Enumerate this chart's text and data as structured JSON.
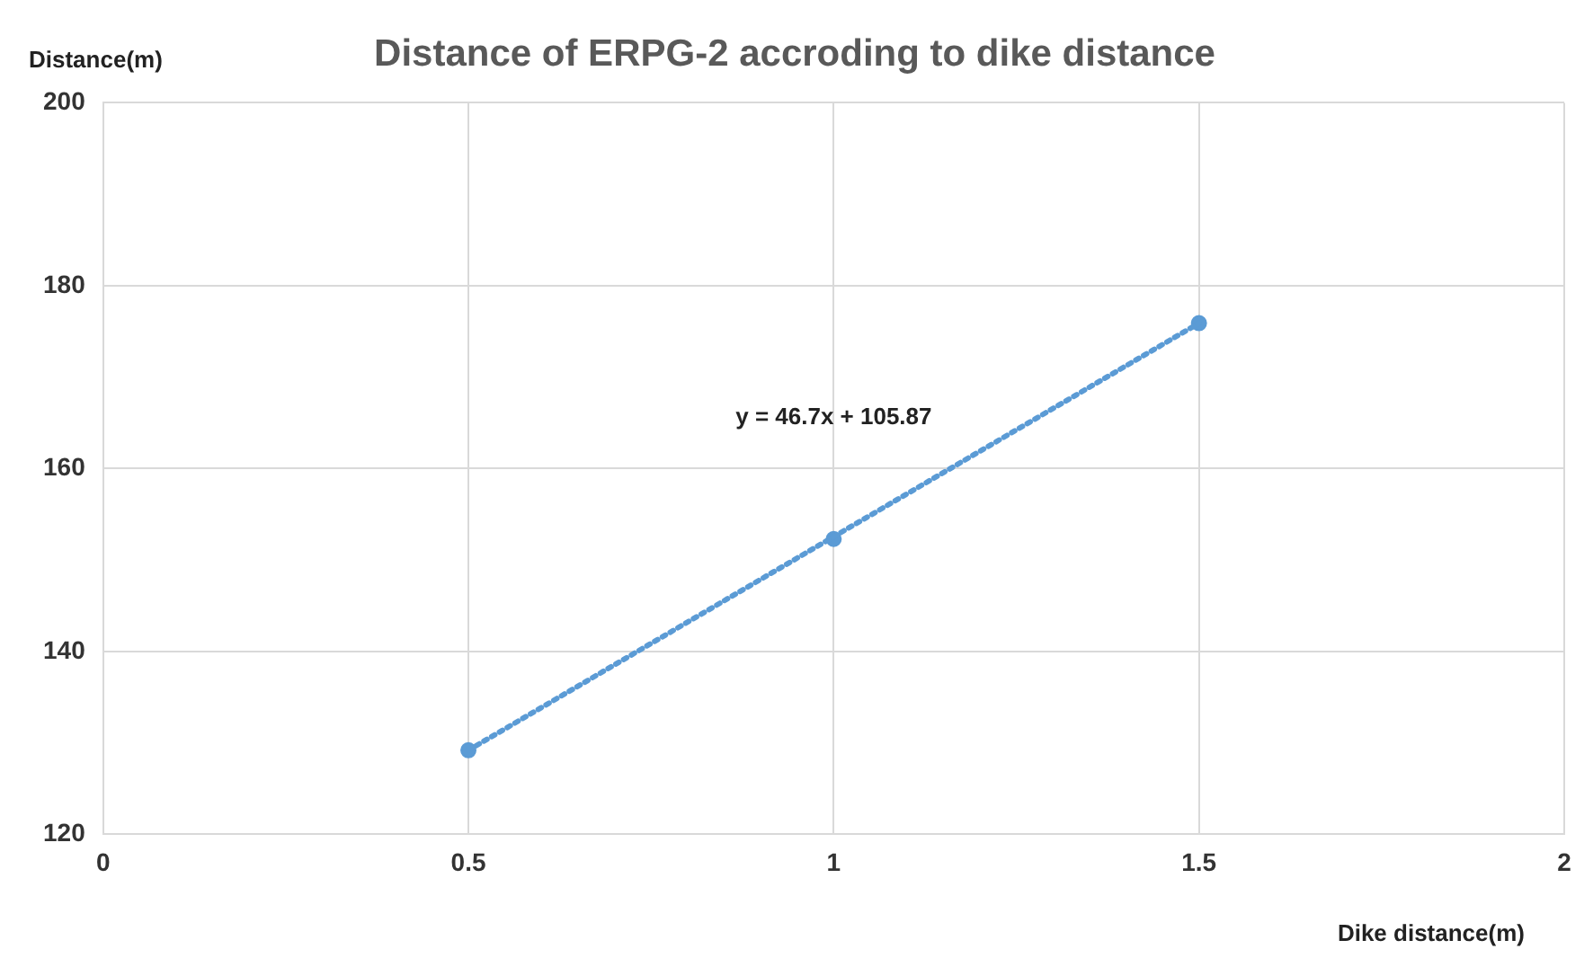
{
  "chart_data": {
    "type": "scatter",
    "title": "Distance of ERPG-2 accroding to dike distance",
    "xlabel": "Dike distance(m)",
    "ylabel": "Distance(m)",
    "xlim": [
      0,
      2
    ],
    "xticks": [
      0,
      0.5,
      1,
      1.5,
      2
    ],
    "ylim": [
      120,
      200
    ],
    "yticks": [
      120,
      140,
      160,
      180,
      200
    ],
    "grid": true,
    "legend": false,
    "series": [
      {
        "x": [
          0.5,
          1,
          1.5
        ],
        "values": [
          129.2,
          152.3,
          175.9
        ],
        "color": "#5b9bd5",
        "marker": "circle"
      },
      {
        "type": "line",
        "x": [
          0.5,
          1.5
        ],
        "values": [
          129.2,
          175.9
        ],
        "color": "#5b9bd5",
        "line_style": "dotted",
        "marker": "none"
      }
    ],
    "annotations": [
      "y = 46.7x + 105.87"
    ]
  }
}
